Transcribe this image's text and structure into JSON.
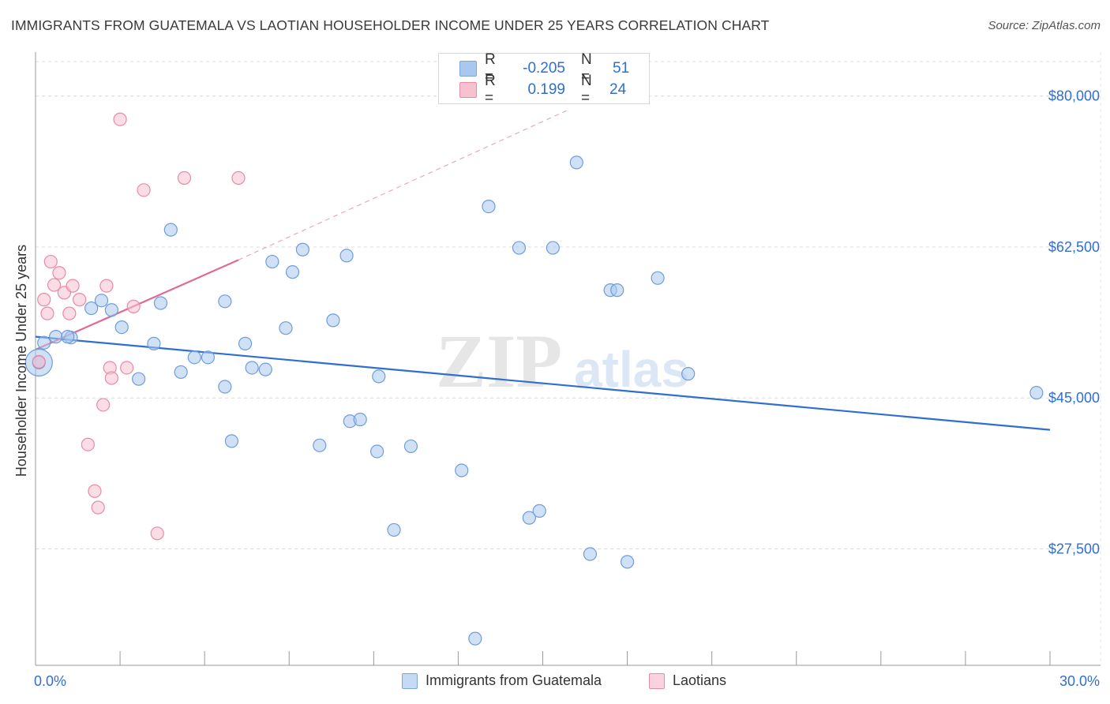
{
  "title": "IMMIGRANTS FROM GUATEMALA VS LAOTIAN HOUSEHOLDER INCOME UNDER 25 YEARS CORRELATION CHART",
  "source": "Source: ZipAtlas.com",
  "watermark": {
    "zip": "ZIP",
    "atlas": "atlas"
  },
  "stats": [
    {
      "r_label": "R =",
      "r_value": "-0.205",
      "n_label": "N =",
      "n_value": "51",
      "color": "#a9c8ef",
      "border": "#7ea6dc"
    },
    {
      "r_label": "R =",
      "r_value": "0.199",
      "n_label": "N =",
      "n_value": "24",
      "color": "#f7c1d0",
      "border": "#e98aa6"
    }
  ],
  "legend": [
    {
      "label": "Immigrants from Guatemala",
      "color": "#c5daf5",
      "border": "#7ea6dc"
    },
    {
      "label": "Laotians",
      "color": "#fad3de",
      "border": "#e98aa6"
    }
  ],
  "chart_data": {
    "type": "scatter",
    "ylabel": "Householder Income Under 25 years",
    "x_tick_labels": [
      "0.0%",
      "30.0%"
    ],
    "xlim": [
      0,
      30
    ],
    "ylim": [
      14000,
      84000
    ],
    "y_ticks": [
      {
        "value": 80000,
        "label": "$80,000"
      },
      {
        "value": 62500,
        "label": "$62,500"
      },
      {
        "value": 45000,
        "label": "$45,000"
      },
      {
        "value": 27500,
        "label": "$27,500"
      }
    ],
    "series": [
      {
        "name": "Immigrants from Guatemala",
        "color": "#a9c8ef",
        "stroke": "#6d9ddc",
        "trend": {
          "x0": 0,
          "y0": 52100,
          "x1": 30,
          "y1": 41300,
          "color": "#2f6fcf"
        },
        "points": [
          [
            0.1,
            49100
          ],
          [
            0.25,
            51400
          ],
          [
            0.6,
            52100
          ],
          [
            1.05,
            52000
          ],
          [
            0.95,
            52100
          ],
          [
            1.65,
            55400
          ],
          [
            1.95,
            56300
          ],
          [
            2.55,
            53200
          ],
          [
            2.25,
            55200
          ],
          [
            3.5,
            51300
          ],
          [
            3.05,
            47200
          ],
          [
            3.7,
            56000
          ],
          [
            4.0,
            64500
          ],
          [
            4.3,
            48000
          ],
          [
            4.7,
            49700
          ],
          [
            5.1,
            49700
          ],
          [
            5.6,
            56200
          ],
          [
            5.6,
            46300
          ],
          [
            5.8,
            40000
          ],
          [
            6.2,
            51300
          ],
          [
            6.4,
            48500
          ],
          [
            6.8,
            48300
          ],
          [
            7.0,
            60800
          ],
          [
            7.4,
            53100
          ],
          [
            7.6,
            59600
          ],
          [
            7.9,
            62200
          ],
          [
            8.4,
            39500
          ],
          [
            8.8,
            54000
          ],
          [
            9.2,
            61500
          ],
          [
            9.3,
            42300
          ],
          [
            9.6,
            42500
          ],
          [
            10.1,
            38800
          ],
          [
            10.15,
            47500
          ],
          [
            10.6,
            29700
          ],
          [
            11.1,
            39400
          ],
          [
            12.6,
            36600
          ],
          [
            13.0,
            17100
          ],
          [
            13.4,
            67200
          ],
          [
            14.3,
            62400
          ],
          [
            14.6,
            31100
          ],
          [
            14.9,
            31900
          ],
          [
            15.3,
            62400
          ],
          [
            16.0,
            72300
          ],
          [
            16.4,
            26900
          ],
          [
            17.0,
            57500
          ],
          [
            17.2,
            57500
          ],
          [
            17.5,
            26000
          ],
          [
            18.4,
            58900
          ],
          [
            19.3,
            47800
          ],
          [
            29.6,
            45600
          ]
        ],
        "large_point": [
          0.1,
          49100
        ]
      },
      {
        "name": "Laotians",
        "color": "#f7c1d0",
        "stroke": "#e98aa6",
        "trend": {
          "x0": 0,
          "y0": 50600,
          "x1": 6,
          "y1": 61000,
          "dash_to_x": 15.7,
          "dash_to_y": 78300,
          "color": "#e06a92"
        },
        "points": [
          [
            0.1,
            49200
          ],
          [
            0.25,
            56400
          ],
          [
            0.35,
            54800
          ],
          [
            0.45,
            60800
          ],
          [
            0.55,
            58100
          ],
          [
            0.7,
            59500
          ],
          [
            0.85,
            57200
          ],
          [
            1.0,
            54800
          ],
          [
            1.1,
            58000
          ],
          [
            1.3,
            56400
          ],
          [
            1.55,
            39600
          ],
          [
            1.75,
            34200
          ],
          [
            1.85,
            32300
          ],
          [
            2.0,
            44200
          ],
          [
            2.1,
            58000
          ],
          [
            2.2,
            48500
          ],
          [
            2.25,
            47300
          ],
          [
            2.5,
            77300
          ],
          [
            2.7,
            48500
          ],
          [
            2.9,
            55600
          ],
          [
            3.2,
            69100
          ],
          [
            3.6,
            29300
          ],
          [
            4.4,
            70500
          ],
          [
            6.0,
            70500
          ]
        ]
      }
    ]
  }
}
